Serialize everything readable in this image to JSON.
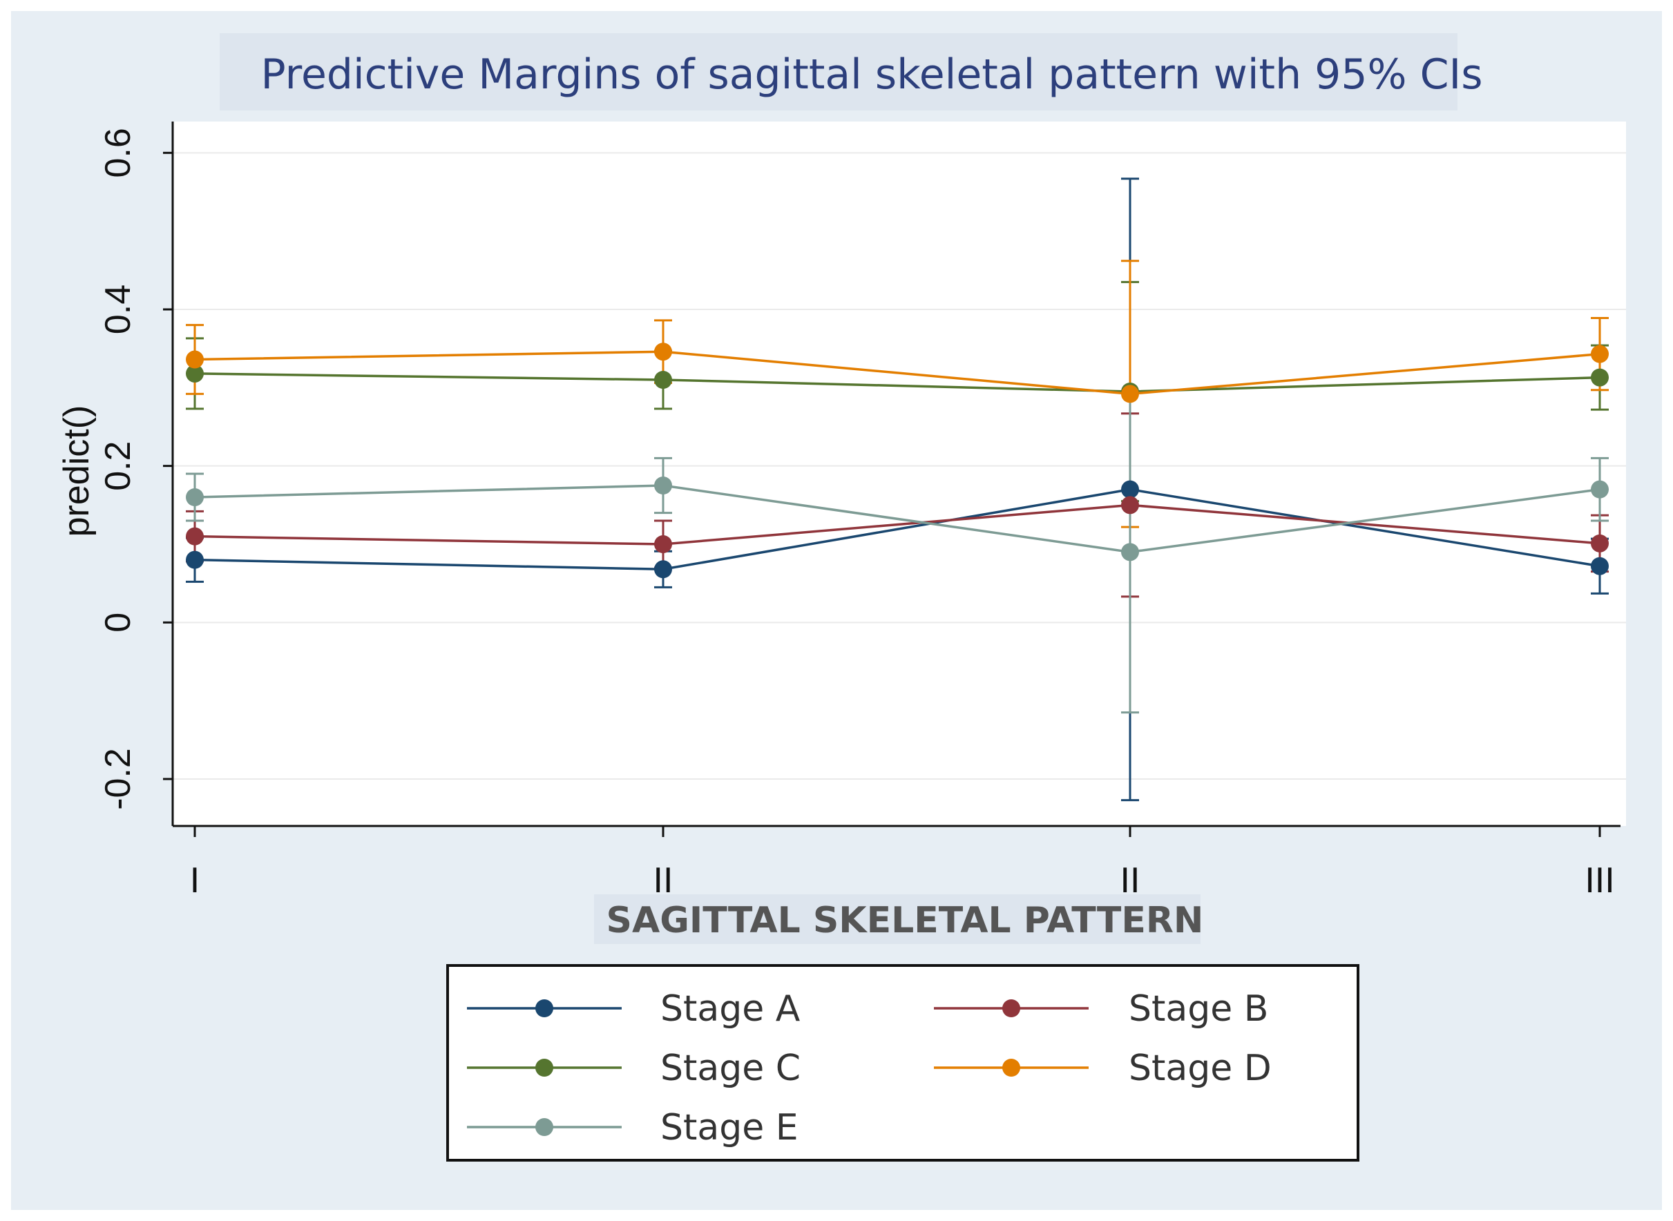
{
  "chart_data": {
    "type": "line",
    "title": "Predictive Margins of sagittal skeletal pattern with 95% CIs",
    "xlabel": "SAGITTAL SKELETAL PATTERN",
    "ylabel": "predict()",
    "categories": [
      "I",
      "II",
      "II",
      "III"
    ],
    "ylim": [
      -0.26,
      0.64
    ],
    "yticks": [
      -0.2,
      0,
      0.2,
      0.4,
      0.6
    ],
    "ytick_labels": [
      "-0.2",
      "0",
      "0.2",
      "0.4",
      "0.6"
    ],
    "grid": true,
    "legend_position": "bottom",
    "series": [
      {
        "name": "Stage A",
        "color": "#1a476f",
        "values": [
          0.08,
          0.068,
          0.17,
          0.072
        ],
        "lower": [
          0.052,
          0.045,
          -0.227,
          0.037
        ],
        "upper": [
          0.108,
          0.091,
          0.567,
          0.107
        ]
      },
      {
        "name": "Stage B",
        "color": "#90353b",
        "values": [
          0.11,
          0.1,
          0.15,
          0.101
        ],
        "lower": [
          0.078,
          0.07,
          0.033,
          0.065
        ],
        "upper": [
          0.142,
          0.13,
          0.267,
          0.137
        ]
      },
      {
        "name": "Stage C",
        "color": "#55752f",
        "values": [
          0.318,
          0.31,
          0.295,
          0.313
        ],
        "lower": [
          0.273,
          0.273,
          0.155,
          0.272
        ],
        "upper": [
          0.363,
          0.347,
          0.435,
          0.354
        ]
      },
      {
        "name": "Stage D",
        "color": "#e37e00",
        "values": [
          0.336,
          0.346,
          0.292,
          0.343
        ],
        "lower": [
          0.292,
          0.306,
          0.122,
          0.297
        ],
        "upper": [
          0.38,
          0.386,
          0.462,
          0.389
        ]
      },
      {
        "name": "Stage E",
        "color": "#7d9b94",
        "values": [
          0.16,
          0.175,
          0.09,
          0.17
        ],
        "lower": [
          0.13,
          0.14,
          -0.115,
          0.13
        ],
        "upper": [
          0.19,
          0.21,
          0.295,
          0.21
        ]
      }
    ]
  }
}
